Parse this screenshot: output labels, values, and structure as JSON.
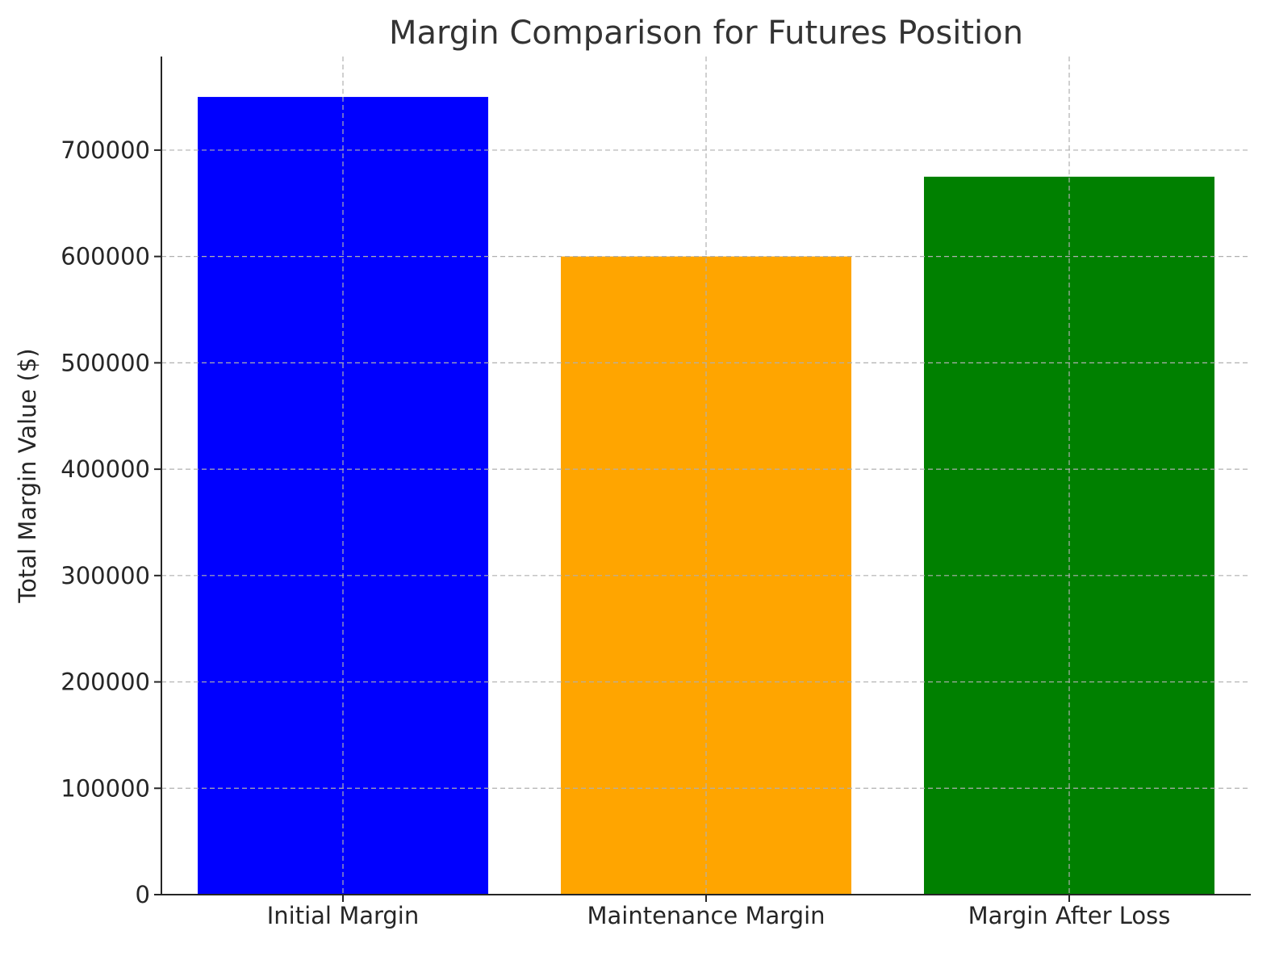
{
  "chart_data": {
    "type": "bar",
    "title": "Margin Comparison for Futures Position",
    "xlabel": "",
    "ylabel": "Total Margin Value ($)",
    "categories": [
      "Initial Margin",
      "Maintenance Margin",
      "Margin After Loss"
    ],
    "values": [
      750000,
      600000,
      675000
    ],
    "colors": [
      "#0000ff",
      "#ffa500",
      "#008000"
    ],
    "ylim": [
      0,
      788000
    ],
    "yticks": [
      0,
      100000,
      200000,
      300000,
      400000,
      500000,
      600000,
      700000
    ],
    "ytick_labels": [
      "0",
      "100000",
      "200000",
      "300000",
      "400000",
      "500000",
      "600000",
      "700000"
    ],
    "grid": true,
    "grid_style": "dashed",
    "legend": "none"
  }
}
